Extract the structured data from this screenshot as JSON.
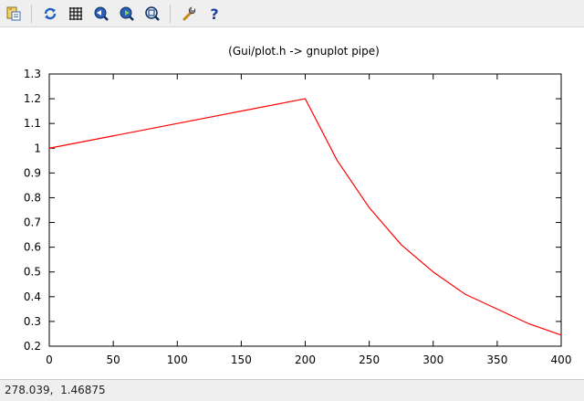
{
  "toolbar": {
    "buttons": [
      {
        "icon": "export-icon"
      },
      {
        "icon": "replot-icon"
      },
      {
        "icon": "grid-icon"
      },
      {
        "icon": "zoom-previous-icon"
      },
      {
        "icon": "zoom-next-icon"
      },
      {
        "icon": "autoscale-icon"
      },
      {
        "icon": "settings-wrench-icon"
      },
      {
        "icon": "help-icon"
      }
    ]
  },
  "colors": {
    "series": "#ff0000",
    "axis": "#000000",
    "toolbar_bg": "#efefef"
  },
  "chart_data": {
    "type": "line",
    "title": "(Gui/plot.h -> gnuplot pipe)",
    "xlabel": "",
    "ylabel": "",
    "xlim": [
      0,
      400
    ],
    "ylim": [
      0.2,
      1.3
    ],
    "xticks": [
      "0",
      "50",
      "100",
      "150",
      "200",
      "250",
      "300",
      "350",
      "400"
    ],
    "yticks": [
      "0.2",
      "0.3",
      "0.4",
      "0.5",
      "0.6",
      "0.7",
      "0.8",
      "0.9",
      "1",
      "1.1",
      "1.2",
      "1.3"
    ],
    "grid": false,
    "series": [
      {
        "x": [
          0,
          50,
          100,
          150,
          200,
          225,
          250,
          275,
          300,
          325,
          350,
          375,
          400
        ],
        "values": [
          1.0,
          1.05,
          1.1,
          1.15,
          1.2,
          0.95,
          0.76,
          0.61,
          0.5,
          0.41,
          0.35,
          0.29,
          0.245
        ]
      }
    ]
  },
  "status": {
    "coordinates": "278.039,  1.46875"
  }
}
